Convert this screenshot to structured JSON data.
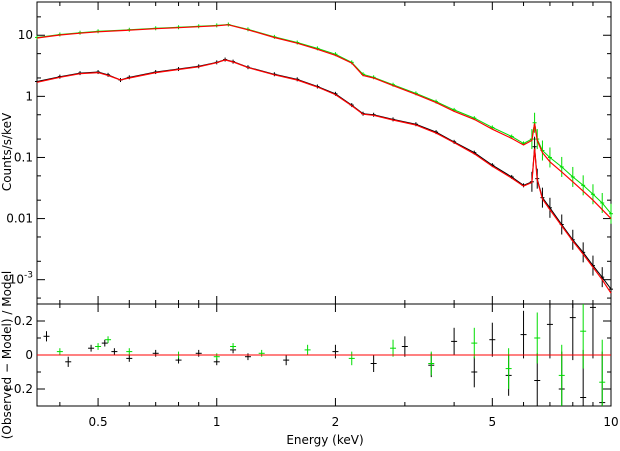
{
  "chart_data": [
    {
      "type": "line",
      "panel": "spectrum",
      "xlabel": "Energy (keV)",
      "ylabel": "Counts/s/keV",
      "xscale": "log",
      "yscale": "log",
      "xlim": [
        0.35,
        10
      ],
      "ylim": [
        0.0004,
        35
      ],
      "x_ticks": [
        0.5,
        1,
        2,
        5,
        10
      ],
      "x_tick_labels": [
        "0.5",
        "1",
        "2",
        "5",
        "10"
      ],
      "y_ticks": [
        0.001,
        0.01,
        0.1,
        1,
        10
      ],
      "y_tick_labels": [
        "10^-3",
        "0.01",
        "0.1",
        "1",
        "10"
      ],
      "grid": false,
      "series": [
        {
          "role": "data_upper",
          "color": "#00dd00",
          "x": [
            0.35,
            0.4,
            0.45,
            0.5,
            0.6,
            0.7,
            0.8,
            0.9,
            1.0,
            1.07,
            1.2,
            1.4,
            1.6,
            1.8,
            2.0,
            2.2,
            2.35,
            2.5,
            2.8,
            3.2,
            3.6,
            4.0,
            4.5,
            5.0,
            5.6,
            6.0,
            6.3,
            6.4,
            6.5,
            6.7,
            7.0,
            7.5,
            8.0,
            8.5,
            9.0,
            9.5,
            10.0
          ],
          "y": [
            9.2,
            10.3,
            11.0,
            11.6,
            12.3,
            13.0,
            13.5,
            14.0,
            14.5,
            15.0,
            12.5,
            9.4,
            7.6,
            6.1,
            4.9,
            3.6,
            2.3,
            2.05,
            1.55,
            1.12,
            0.82,
            0.6,
            0.44,
            0.31,
            0.22,
            0.17,
            0.2,
            0.37,
            0.2,
            0.13,
            0.1,
            0.07,
            0.048,
            0.035,
            0.025,
            0.018,
            0.012
          ]
        },
        {
          "role": "model_upper",
          "color": "#ff0000",
          "x": [
            0.35,
            0.4,
            0.45,
            0.5,
            0.6,
            0.7,
            0.8,
            0.9,
            1.0,
            1.07,
            1.2,
            1.4,
            1.6,
            1.8,
            2.0,
            2.2,
            2.35,
            2.5,
            2.8,
            3.2,
            3.6,
            4.0,
            4.5,
            5.0,
            5.6,
            6.0,
            6.3,
            6.4,
            6.5,
            6.7,
            7.0,
            7.5,
            8.0,
            8.5,
            9.0,
            9.5,
            10.0
          ],
          "y": [
            9.0,
            10.1,
            10.8,
            11.4,
            12.1,
            12.8,
            13.3,
            13.8,
            14.3,
            14.8,
            12.3,
            9.2,
            7.4,
            5.9,
            4.7,
            3.5,
            2.2,
            2.0,
            1.5,
            1.08,
            0.79,
            0.57,
            0.42,
            0.29,
            0.205,
            0.16,
            0.19,
            0.36,
            0.19,
            0.12,
            0.085,
            0.058,
            0.04,
            0.028,
            0.02,
            0.014,
            0.01
          ]
        },
        {
          "role": "data_lower",
          "color": "#000000",
          "x": [
            0.35,
            0.4,
            0.45,
            0.5,
            0.53,
            0.57,
            0.6,
            0.7,
            0.8,
            0.9,
            1.0,
            1.05,
            1.1,
            1.2,
            1.4,
            1.6,
            1.8,
            2.0,
            2.2,
            2.35,
            2.5,
            2.8,
            3.2,
            3.6,
            4.0,
            4.5,
            5.0,
            5.6,
            6.0,
            6.3,
            6.4,
            6.5,
            6.7,
            7.0,
            7.5,
            8.0,
            8.5,
            9.0,
            9.5,
            10.0
          ],
          "y": [
            1.75,
            2.1,
            2.4,
            2.5,
            2.25,
            1.85,
            2.05,
            2.5,
            2.8,
            3.1,
            3.6,
            4.0,
            3.7,
            3.0,
            2.3,
            1.9,
            1.45,
            1.1,
            0.72,
            0.52,
            0.5,
            0.42,
            0.35,
            0.26,
            0.18,
            0.12,
            0.075,
            0.048,
            0.035,
            0.04,
            0.15,
            0.045,
            0.022,
            0.015,
            0.008,
            0.0045,
            0.0028,
            0.0017,
            0.0011,
            0.0007
          ]
        },
        {
          "role": "model_lower",
          "color": "#ff0000",
          "x": [
            0.35,
            0.4,
            0.45,
            0.5,
            0.53,
            0.57,
            0.6,
            0.7,
            0.8,
            0.9,
            1.0,
            1.05,
            1.1,
            1.2,
            1.4,
            1.6,
            1.8,
            2.0,
            2.2,
            2.35,
            2.5,
            2.8,
            3.2,
            3.6,
            4.0,
            4.5,
            5.0,
            5.6,
            6.0,
            6.3,
            6.4,
            6.5,
            6.7,
            7.0,
            7.5,
            8.0,
            8.5,
            9.0,
            9.5,
            10.0
          ],
          "y": [
            1.7,
            2.05,
            2.35,
            2.45,
            2.2,
            1.85,
            2.0,
            2.45,
            2.75,
            3.05,
            3.55,
            3.95,
            3.65,
            2.95,
            2.25,
            1.85,
            1.42,
            1.07,
            0.7,
            0.51,
            0.49,
            0.41,
            0.34,
            0.25,
            0.175,
            0.115,
            0.072,
            0.046,
            0.034,
            0.039,
            0.14,
            0.043,
            0.021,
            0.014,
            0.0076,
            0.0043,
            0.0026,
            0.0016,
            0.001,
            0.0006
          ]
        }
      ]
    },
    {
      "type": "scatter",
      "panel": "residuals",
      "xlabel": "Energy (keV)",
      "ylabel": "(Observed − Model) / Model",
      "xscale": "log",
      "xlim": [
        0.35,
        10
      ],
      "ylim": [
        -0.3,
        0.3
      ],
      "y_ticks": [
        -0.2,
        0,
        0.2
      ],
      "y_tick_labels": [
        "−0.2",
        "0",
        "0.2"
      ],
      "zero_line_color": "#ff0000",
      "series": [
        {
          "role": "residual_black",
          "color": "#000000",
          "x": [
            0.37,
            0.42,
            0.48,
            0.52,
            0.55,
            0.6,
            0.7,
            0.8,
            0.9,
            1.0,
            1.1,
            1.2,
            1.5,
            2.0,
            2.5,
            3.0,
            3.5,
            4.0,
            4.5,
            5.0,
            5.5,
            6.0,
            6.5,
            7.0,
            7.5,
            8.0,
            8.5,
            9.0,
            9.5
          ],
          "y": [
            0.11,
            -0.04,
            0.04,
            0.07,
            0.02,
            -0.02,
            0.01,
            -0.03,
            0.01,
            -0.04,
            0.03,
            -0.01,
            -0.03,
            0.02,
            -0.05,
            0.05,
            -0.06,
            0.08,
            -0.1,
            0.09,
            -0.12,
            0.12,
            -0.15,
            0.18,
            -0.2,
            0.22,
            -0.25,
            0.28,
            -0.28
          ],
          "err": [
            0.03,
            0.03,
            0.02,
            0.02,
            0.02,
            0.02,
            0.02,
            0.02,
            0.02,
            0.02,
            0.02,
            0.02,
            0.03,
            0.04,
            0.05,
            0.06,
            0.07,
            0.08,
            0.09,
            0.1,
            0.12,
            0.14,
            0.16,
            0.2,
            0.22,
            0.25,
            0.28,
            0.3,
            0.3
          ]
        },
        {
          "role": "residual_green",
          "color": "#00dd00",
          "x": [
            0.4,
            0.5,
            0.53,
            0.6,
            0.8,
            1.0,
            1.1,
            1.3,
            1.7,
            2.2,
            2.8,
            3.5,
            4.5,
            5.5,
            6.5,
            7.5,
            8.5,
            9.5
          ],
          "y": [
            0.02,
            0.05,
            0.09,
            0.02,
            0.0,
            -0.01,
            0.05,
            0.01,
            0.03,
            -0.02,
            0.04,
            -0.05,
            0.07,
            -0.08,
            0.1,
            -0.12,
            0.14,
            -0.16
          ],
          "err": [
            0.02,
            0.02,
            0.02,
            0.02,
            0.02,
            0.02,
            0.02,
            0.02,
            0.03,
            0.04,
            0.05,
            0.07,
            0.09,
            0.12,
            0.15,
            0.18,
            0.22,
            0.25
          ]
        }
      ]
    }
  ]
}
